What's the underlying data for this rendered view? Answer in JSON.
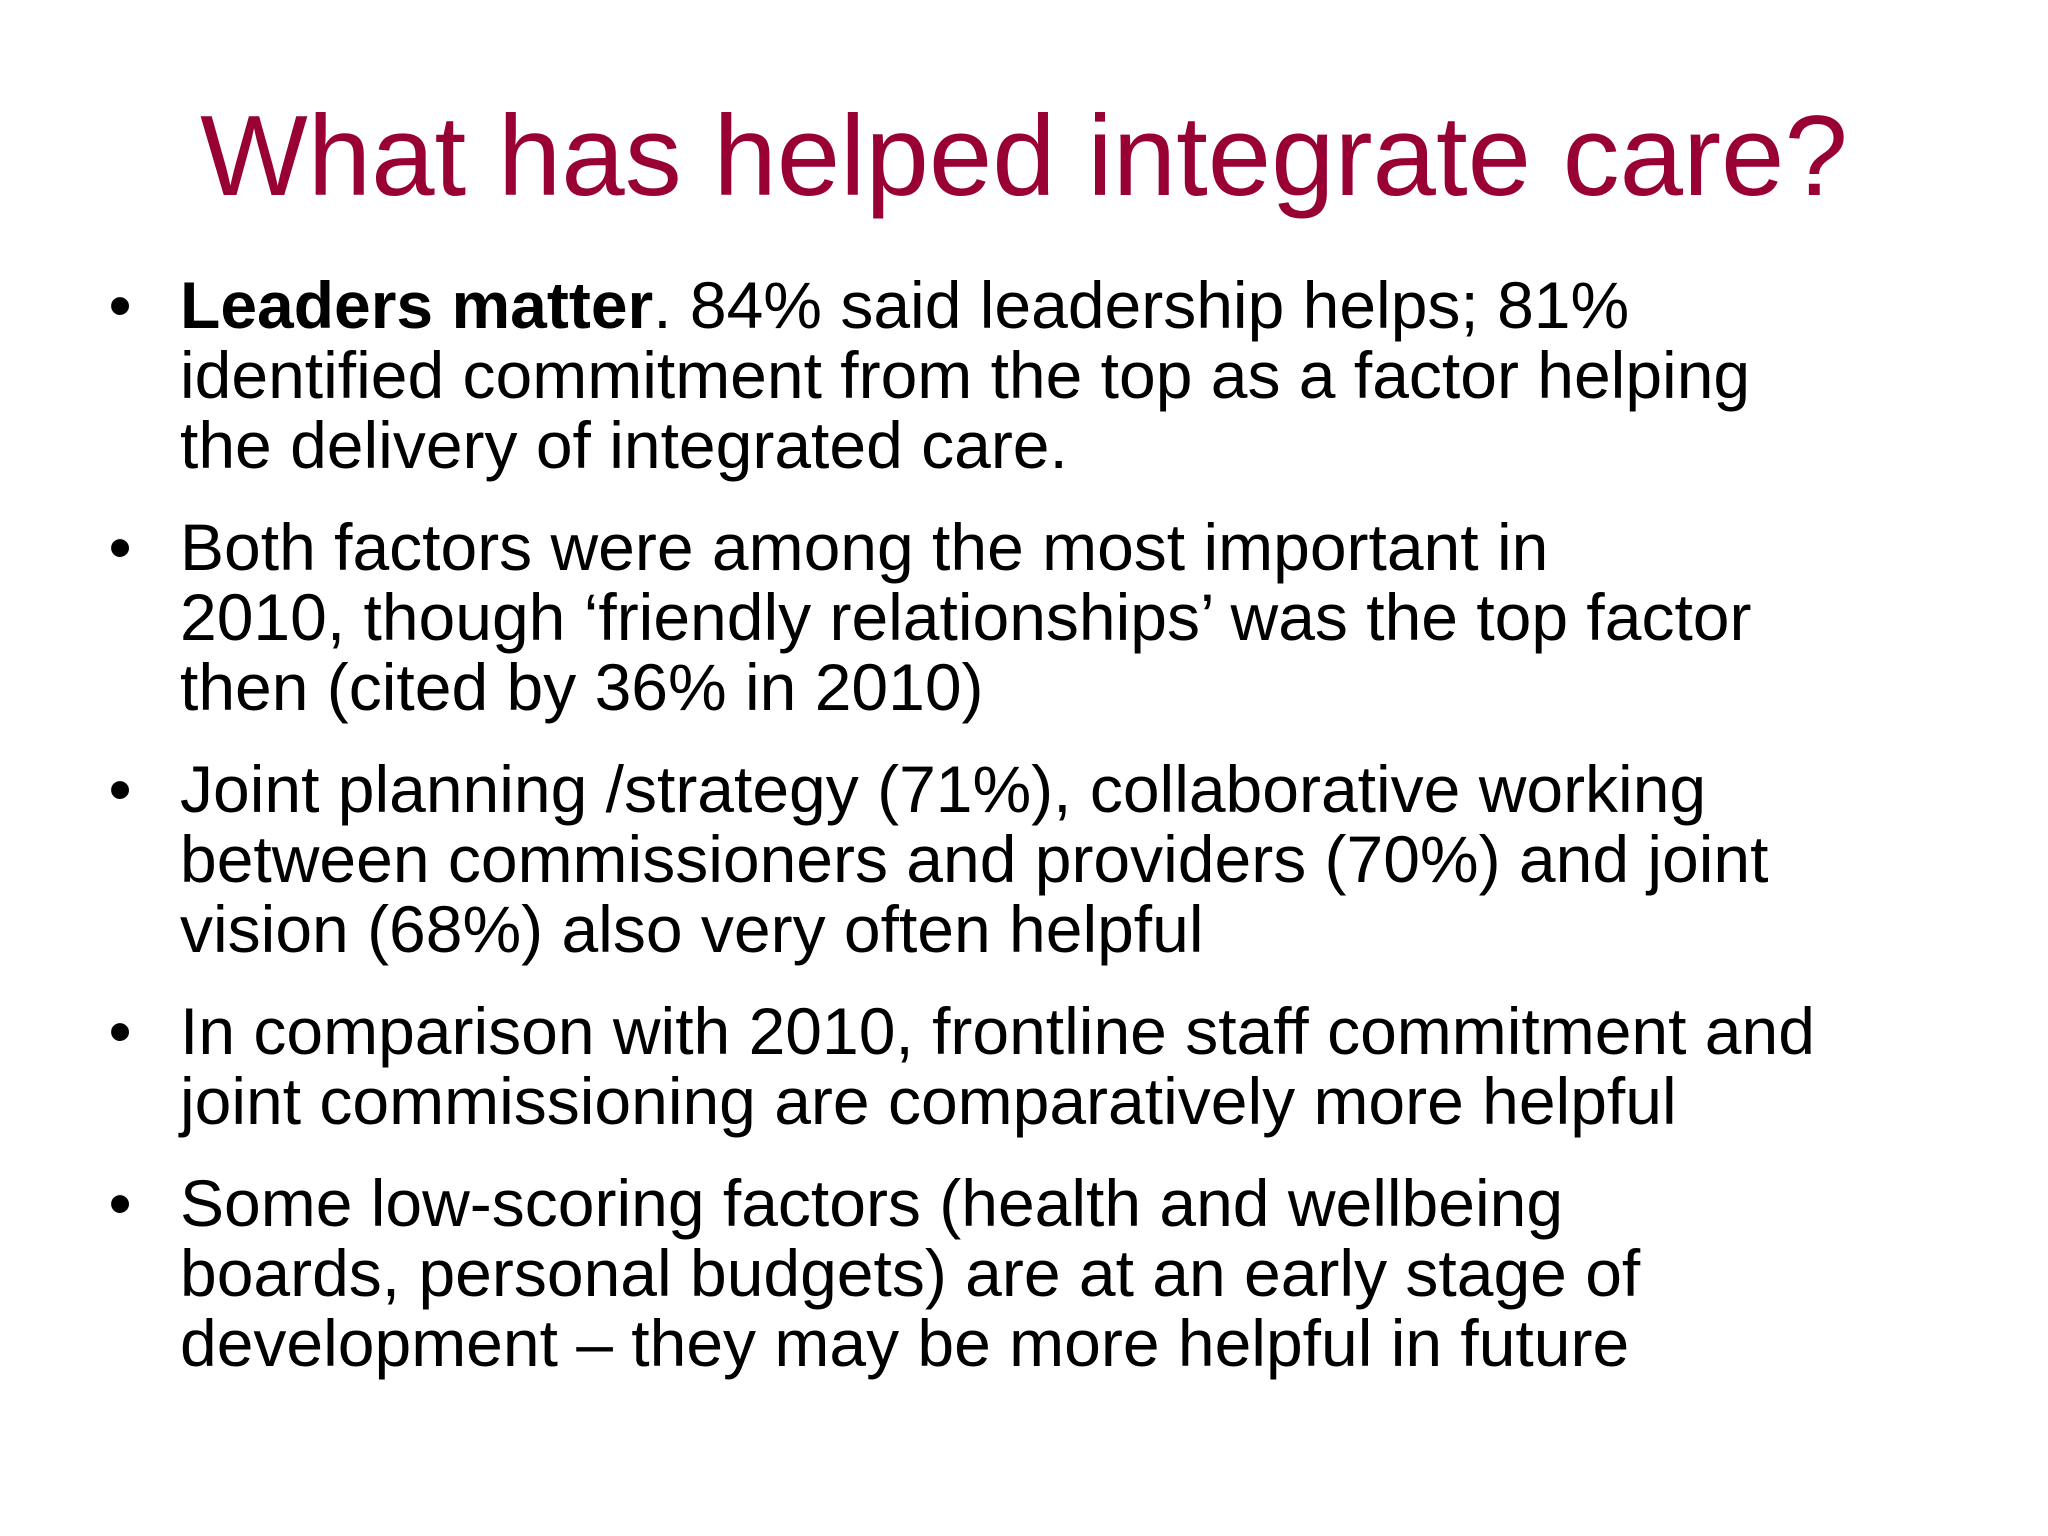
{
  "slide": {
    "title": "What has helped integrate care?",
    "title_color": "#990033",
    "bullet_marker": "•",
    "bullets": [
      {
        "lead_bold": "Leaders matter",
        "lead_rest": ".  84% said leadership helps; 81%",
        "lines": [
          "identified commitment from the top as a factor helping",
          "the delivery of integrated care."
        ]
      },
      {
        "lines": [
          "Both factors were among the most important in",
          "2010, though ‘friendly relationships’ was the top factor",
          "then (cited by 36% in 2010)"
        ]
      },
      {
        "lines": [
          "Joint planning /strategy (71%), collaborative working",
          "between commissioners and providers (70%) and joint",
          "vision (68%) also very often helpful"
        ]
      },
      {
        "lines": [
          "In comparison with 2010, frontline staff commitment and",
          "joint commissioning are comparatively more helpful"
        ]
      },
      {
        "lines": [
          "Some low-scoring factors (health and wellbeing",
          "boards, personal budgets) are at an early stage of",
          "development – they may be more helpful in future"
        ]
      }
    ]
  }
}
